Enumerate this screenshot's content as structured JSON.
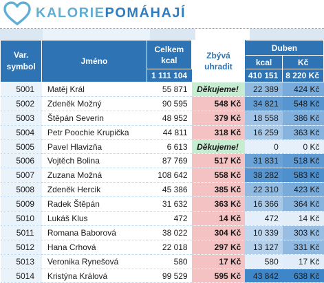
{
  "logo": {
    "part1": "KALORIE",
    "part2": "POMÁHAJÍ"
  },
  "header": {
    "var_symbol": "Var. symbol",
    "name": "Jméno",
    "total_kcal": "Celkem kcal",
    "remaining": "Zbývá uhradit",
    "month": "Duben",
    "col_kcal": "kcal",
    "col_kc": "Kč",
    "sum_total": "1 111 104",
    "sum_kcal": "410 151",
    "sum_kc": "8 220 Kč"
  },
  "rows": [
    {
      "vs": "5001",
      "name": "Matěj Král",
      "total": "55 871",
      "remaining": "Děkujeme!",
      "kcal": "22 389",
      "kc": "424 Kč",
      "status": "paid",
      "kcal_level": 0.51,
      "kc_level": 0.66
    },
    {
      "vs": "5002",
      "name": "Zdeněk Možný",
      "total": "90 595",
      "remaining": "548 Kč",
      "kcal": "34 821",
      "kc": "548 Kč",
      "status": "owe",
      "kcal_level": 0.79,
      "kc_level": 0.86
    },
    {
      "vs": "5003",
      "name": "Štěpán Severin",
      "total": "48 952",
      "remaining": "379 Kč",
      "kcal": "18 558",
      "kc": "386 Kč",
      "status": "owe",
      "kcal_level": 0.42,
      "kc_level": 0.6
    },
    {
      "vs": "5004",
      "name": "Petr Poochie Krupička",
      "total": "44 811",
      "remaining": "318 Kč",
      "kcal": "16 259",
      "kc": "363 Kč",
      "status": "owe",
      "kcal_level": 0.37,
      "kc_level": 0.57
    },
    {
      "vs": "5005",
      "name": "Pavel Hlavizňa",
      "total": "6 613",
      "remaining": "Děkujeme!",
      "kcal": "0",
      "kc": "0 Kč",
      "status": "paid",
      "kcal_level": 0,
      "kc_level": 0
    },
    {
      "vs": "5006",
      "name": "Vojtěch Bolina",
      "total": "87 769",
      "remaining": "517 Kč",
      "kcal": "31 831",
      "kc": "518 Kč",
      "status": "owe",
      "kcal_level": 0.73,
      "kc_level": 0.81
    },
    {
      "vs": "5007",
      "name": "Zuzana Možná",
      "total": "108 642",
      "remaining": "558 Kč",
      "kcal": "38 282",
      "kc": "583 Kč",
      "status": "owe",
      "kcal_level": 0.87,
      "kc_level": 0.91
    },
    {
      "vs": "5008",
      "name": "Zdeněk Hercik",
      "total": "45 386",
      "remaining": "385 Kč",
      "kcal": "22 310",
      "kc": "423 Kč",
      "status": "owe",
      "kcal_level": 0.51,
      "kc_level": 0.66
    },
    {
      "vs": "5009",
      "name": "Radek Štěpán",
      "total": "31 632",
      "remaining": "363 Kč",
      "kcal": "16 366",
      "kc": "364 Kč",
      "status": "owe",
      "kcal_level": 0.37,
      "kc_level": 0.57
    },
    {
      "vs": "5010",
      "name": "Lukáš Klus",
      "total": "472",
      "remaining": "14 Kč",
      "kcal": "472",
      "kc": "14 Kč",
      "status": "owe",
      "kcal_level": 0.01,
      "kc_level": 0.02
    },
    {
      "vs": "5011",
      "name": "Romana Baborová",
      "total": "38 022",
      "remaining": "304 Kč",
      "kcal": "10 339",
      "kc": "303 Kč",
      "status": "owe",
      "kcal_level": 0.24,
      "kc_level": 0.47
    },
    {
      "vs": "5012",
      "name": "Hana Crhová",
      "total": "22 018",
      "remaining": "297 Kč",
      "kcal": "13 127",
      "kc": "331 Kč",
      "status": "owe",
      "kcal_level": 0.3,
      "kc_level": 0.52
    },
    {
      "vs": "5013",
      "name": "Veronika Rynešová",
      "total": "580",
      "remaining": "17 Kč",
      "kcal": "580",
      "kc": "17 Kč",
      "status": "owe",
      "kcal_level": 0.01,
      "kc_level": 0.03
    },
    {
      "vs": "5014",
      "name": "Kristýna Králová",
      "total": "99 529",
      "remaining": "595 Kč",
      "kcal": "43 842",
      "kc": "638 Kč",
      "status": "owe",
      "kcal_level": 1.0,
      "kc_level": 1.0
    }
  ],
  "colors": {
    "header_bg": "#2e74b5",
    "logo_light": "#5eaed6",
    "logo_dark": "#2f7dbf",
    "owe_bg": "#f4c2c2",
    "paid_bg": "#c6ecd1",
    "heat_low": "#e6f0fa",
    "heat_high": "#3f86c9"
  }
}
